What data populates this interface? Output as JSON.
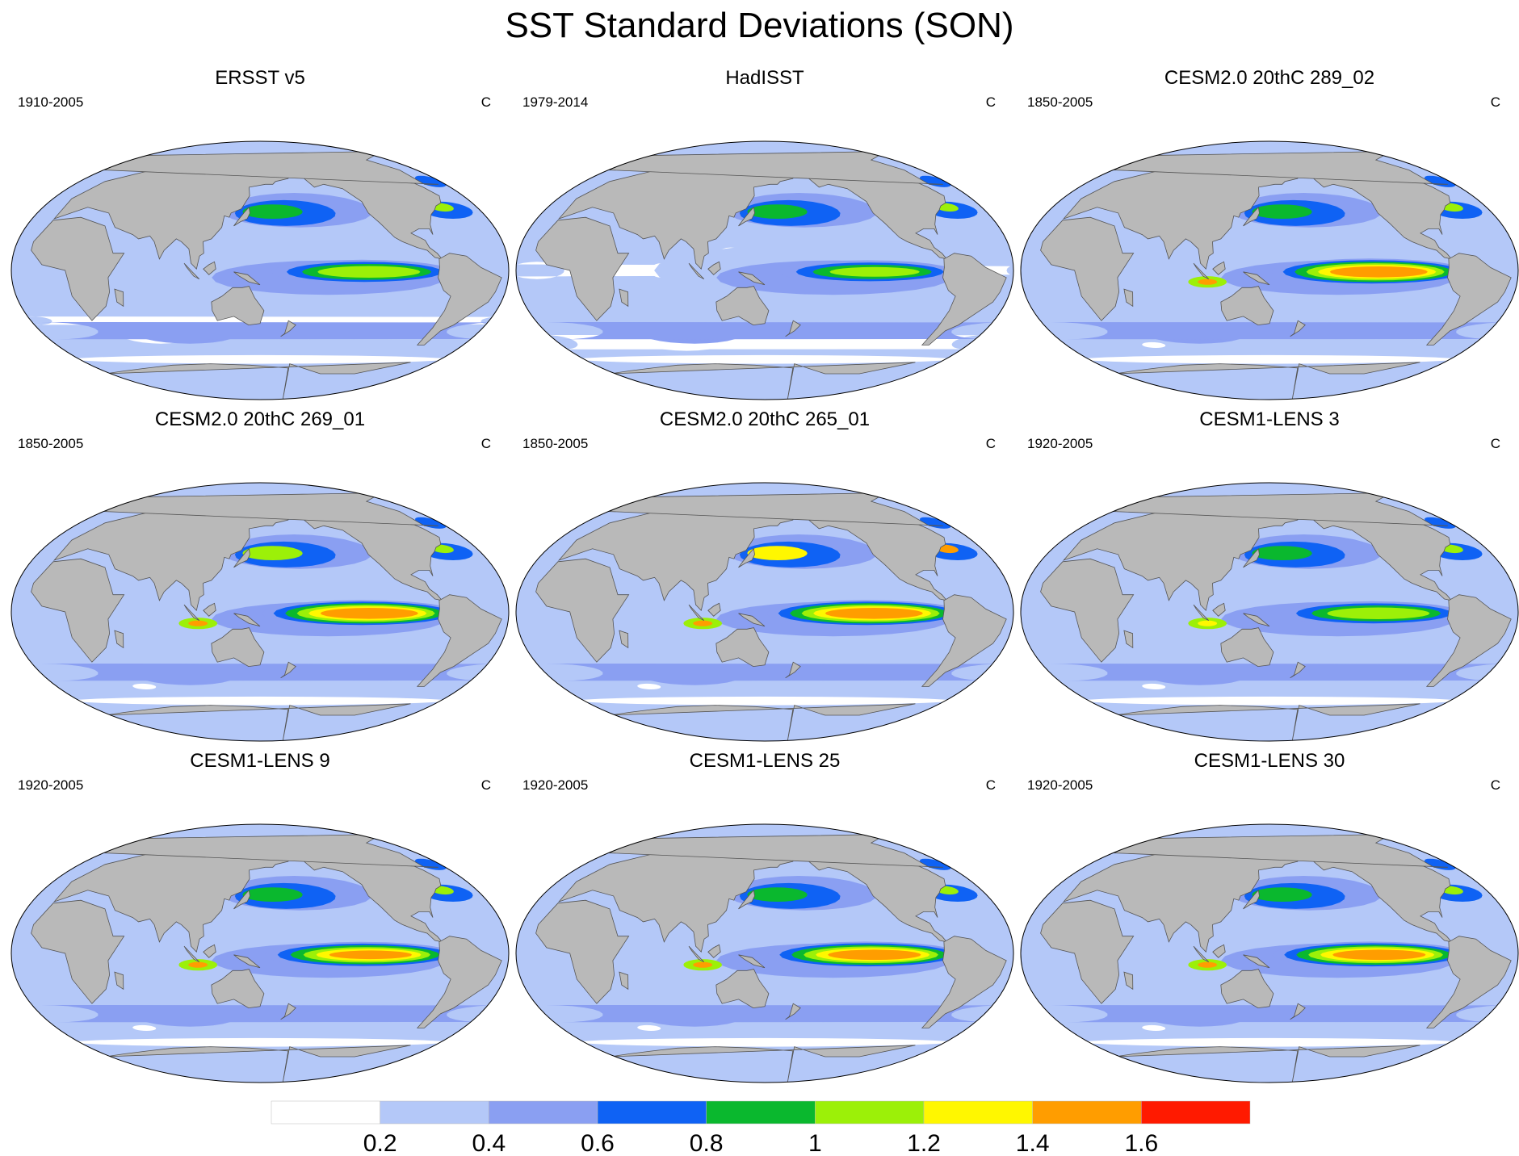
{
  "title": "SST Standard Deviations (SON)",
  "panels": [
    {
      "name": "ERSST v5",
      "years": "1910-2005",
      "units": "C",
      "enso": 1.25,
      "north_pacific": 0.9,
      "kelvin": 0.6,
      "low_sd_regions": "large"
    },
    {
      "name": "HadISST",
      "years": "1979-2014",
      "units": "C",
      "enso": 1.15,
      "north_pacific": 0.85,
      "kelvin": 0.55,
      "low_sd_regions": "very-large"
    },
    {
      "name": "CESM2.0 20thC 289_02",
      "years": "1850-2005",
      "units": "C",
      "enso": 1.65,
      "north_pacific": 0.95,
      "kelvin": 0.7,
      "low_sd_regions": "small"
    },
    {
      "name": "CESM2.0 20thC 269_01",
      "years": "1850-2005",
      "units": "C",
      "enso": 1.65,
      "north_pacific": 1.0,
      "kelvin": 0.8,
      "low_sd_regions": "small"
    },
    {
      "name": "CESM2.0 20thC 265_01",
      "years": "1850-2005",
      "units": "C",
      "enso": 1.65,
      "north_pacific": 1.3,
      "kelvin": 0.8,
      "low_sd_regions": "small"
    },
    {
      "name": "CESM1-LENS 3",
      "years": "1920-2005",
      "units": "C",
      "enso": 1.25,
      "north_pacific": 0.9,
      "kelvin": 0.7,
      "low_sd_regions": "small"
    },
    {
      "name": "CESM1-LENS 9",
      "years": "1920-2005",
      "units": "C",
      "enso": 1.5,
      "north_pacific": 0.95,
      "kelvin": 0.8,
      "low_sd_regions": "small"
    },
    {
      "name": "CESM1-LENS 25",
      "years": "1920-2005",
      "units": "C",
      "enso": 1.6,
      "north_pacific": 0.95,
      "kelvin": 0.8,
      "low_sd_regions": "small"
    },
    {
      "name": "CESM1-LENS 30",
      "years": "1920-2005",
      "units": "C",
      "enso": 1.6,
      "north_pacific": 0.9,
      "kelvin": 0.8,
      "low_sd_regions": "small"
    }
  ],
  "colorbar": {
    "colors": [
      "#ffffff",
      "#b4c8f8",
      "#8a9ff2",
      "#0f62f4",
      "#0ab82e",
      "#9cf008",
      "#fff700",
      "#ff9d00",
      "#ff1a00"
    ],
    "labels": [
      "0.2",
      "0.4",
      "0.6",
      "0.8",
      "1",
      "1.2",
      "1.4",
      "1.6"
    ]
  },
  "land_color": "#b9b9b9"
}
